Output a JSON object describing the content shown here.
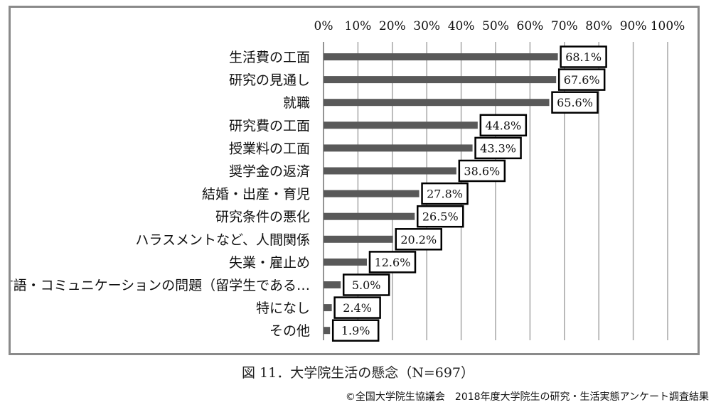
{
  "caption": "図 11．大学院生活の懸念（N=697）",
  "credit": "©全国大学院生協議会　2018年度大学院生の研究・生活実態アンケート調査結果",
  "colors": {
    "bar": "#595959",
    "grid": "#a6a6a6",
    "label_border": "#000000",
    "frame": "#8a8a8a"
  },
  "chart_data": {
    "type": "bar",
    "orientation": "horizontal",
    "categories": [
      "生活費の工面",
      "研究の見通し",
      "就職",
      "研究費の工面",
      "授業料の工面",
      "奨学金の返済",
      "結婚・出産・育児",
      "研究条件の悪化",
      "ハラスメントなど、人間関係",
      "失業・雇止め",
      "言語・コミュニケーションの問題（留学生である…",
      "特になし",
      "その他"
    ],
    "values": [
      68.1,
      67.6,
      65.6,
      44.8,
      43.3,
      38.6,
      27.8,
      26.5,
      20.2,
      12.6,
      5.0,
      2.4,
      1.9
    ],
    "value_labels": [
      "68.1%",
      "67.6%",
      "65.6%",
      "44.8%",
      "43.3%",
      "38.6%",
      "27.8%",
      "26.5%",
      "20.2%",
      "12.6%",
      "5.0%",
      "2.4%",
      "1.9%"
    ],
    "ticks": [
      "0%",
      "10%",
      "20%",
      "30%",
      "40%",
      "50%",
      "60%",
      "70%",
      "80%",
      "90%",
      "100%"
    ],
    "xlim": [
      0,
      100
    ],
    "axis_position": "top",
    "grid": true,
    "legend": "none"
  }
}
